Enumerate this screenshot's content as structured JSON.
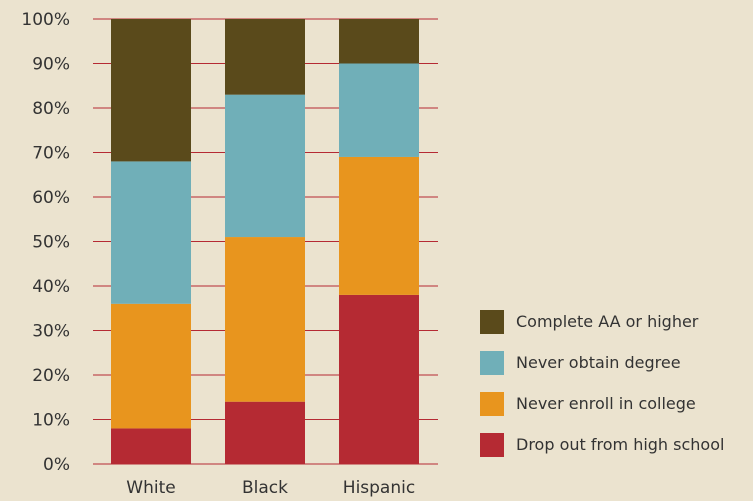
{
  "chart_data": {
    "type": "bar",
    "stacked": true,
    "percent": true,
    "categories": [
      "White",
      "Black",
      "Hispanic"
    ],
    "series": [
      {
        "name": "Drop out from high school",
        "color": "#b52a33",
        "values": [
          8,
          14,
          38
        ]
      },
      {
        "name": "Never enroll in college",
        "color": "#e8951e",
        "values": [
          28,
          37,
          31
        ]
      },
      {
        "name": "Never obtain degree",
        "color": "#70afb8",
        "values": [
          32,
          32,
          21
        ]
      },
      {
        "name": "Complete AA or higher",
        "color": "#5a4a1b",
        "values": [
          32,
          17,
          10
        ]
      }
    ],
    "yticks": [
      "0%",
      "10%",
      "20%",
      "30%",
      "40%",
      "50%",
      "60%",
      "70%",
      "80%",
      "90%",
      "100%"
    ],
    "ylim": [
      0,
      100
    ],
    "gridline_color": "#b52a33",
    "legend_order": [
      3,
      2,
      1,
      0
    ],
    "legend_position": "right",
    "grid": true
  }
}
